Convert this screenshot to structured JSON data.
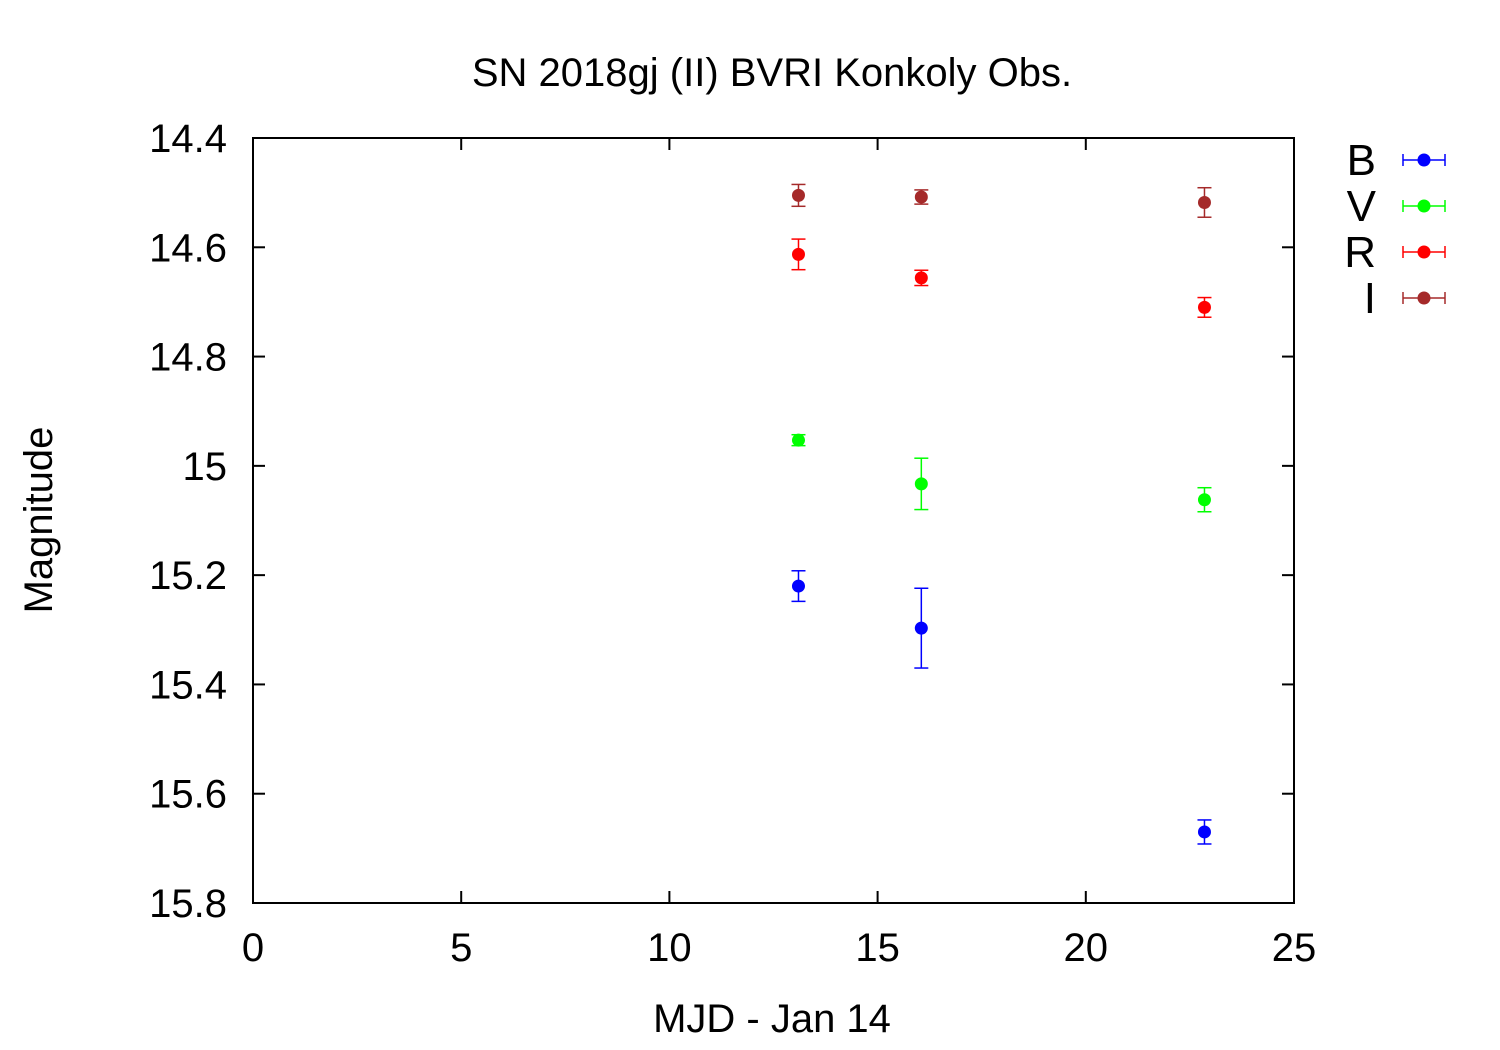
{
  "chart_data": {
    "type": "scatter",
    "title": "SN 2018gj (II) BVRI Konkoly Obs.",
    "xlabel": "MJD - Jan 14",
    "ylabel": "Magnitude",
    "xlim": [
      0,
      25
    ],
    "ylim": [
      14.4,
      15.8
    ],
    "y_inverted": true,
    "x_ticks": [
      0,
      5,
      10,
      15,
      20,
      25
    ],
    "y_ticks": [
      14.4,
      14.6,
      14.8,
      15,
      15.2,
      15.4,
      15.6,
      15.8
    ],
    "x_tick_labels": [
      "0",
      "5",
      "10",
      "15",
      "20",
      "25"
    ],
    "y_tick_labels": [
      "14.4",
      "14.6",
      "14.8",
      "15",
      "15.2",
      "15.4",
      "15.6",
      "15.8"
    ],
    "legend_position": "outside-right-top",
    "grid": false,
    "series": [
      {
        "name": "B",
        "color": "#0000ff",
        "x": [
          13.1,
          16.05,
          22.85
        ],
        "y": [
          15.22,
          15.297,
          15.67
        ],
        "err": [
          0.028,
          0.073,
          0.022
        ]
      },
      {
        "name": "V",
        "color": "#00ff00",
        "x": [
          13.1,
          16.05,
          22.85
        ],
        "y": [
          14.953,
          15.033,
          15.062
        ],
        "err": [
          0.01,
          0.047,
          0.022
        ]
      },
      {
        "name": "R",
        "color": "#ff0000",
        "x": [
          13.1,
          16.05,
          22.85
        ],
        "y": [
          14.613,
          14.656,
          14.71
        ],
        "err": [
          0.028,
          0.014,
          0.018
        ]
      },
      {
        "name": "I",
        "color": "#a52a2a",
        "x": [
          13.1,
          16.05,
          22.85
        ],
        "y": [
          14.505,
          14.508,
          14.518
        ],
        "err": [
          0.02,
          0.013,
          0.027
        ]
      }
    ]
  }
}
